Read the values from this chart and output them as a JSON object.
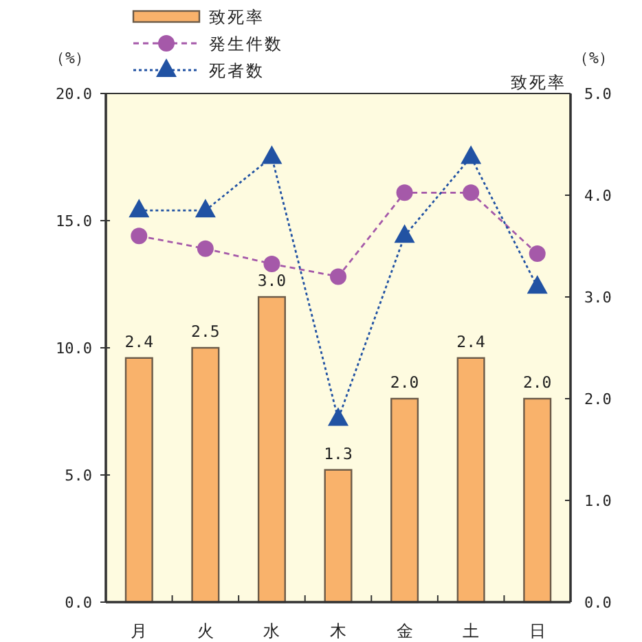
{
  "chart_data": {
    "type": "bar",
    "categories": [
      "月",
      "火",
      "水",
      "木",
      "金",
      "土",
      "日"
    ],
    "series": [
      {
        "name": "致死率",
        "axis": "y2",
        "color": "#f9b26b",
        "values": [
          2.4,
          2.5,
          3.0,
          1.3,
          2.0,
          2.4,
          2.0
        ],
        "value_labels": [
          "2.4",
          "2.5",
          "3.0",
          "1.3",
          "2.0",
          "2.4",
          "2.0"
        ]
      },
      {
        "name": "発生件数",
        "type": "line",
        "color": "#a559a9",
        "marker": "circle",
        "line_style": "dashed",
        "values": [
          14.4,
          13.9,
          13.3,
          12.8,
          16.1,
          16.1,
          13.7
        ]
      },
      {
        "name": "死者数",
        "type": "line",
        "color": "#2152a3",
        "marker": "triangle",
        "line_style": "dotted",
        "values": [
          15.4,
          15.4,
          17.5,
          7.2,
          14.4,
          17.5,
          12.4
        ]
      }
    ],
    "ylabel": "（%）",
    "y2label": "（%）",
    "annotations": [
      "致死率"
    ],
    "ylim": [
      0,
      20
    ],
    "yticks": [
      {
        "value": 0,
        "label": "0.0"
      },
      {
        "value": 5,
        "label": "5.0"
      },
      {
        "value": 10,
        "label": "10.0"
      },
      {
        "value": 15,
        "label": "15.0"
      },
      {
        "value": 20,
        "label": "20.0"
      }
    ],
    "y2lim": [
      0,
      5
    ],
    "y2ticks": [
      {
        "value": 0,
        "label": "0.0"
      },
      {
        "value": 1,
        "label": "1.0"
      },
      {
        "value": 2,
        "label": "2.0"
      },
      {
        "value": 3,
        "label": "3.0"
      },
      {
        "value": 4,
        "label": "4.0"
      },
      {
        "value": 5,
        "label": "5.0"
      }
    ],
    "legend": "top",
    "grid": false
  }
}
